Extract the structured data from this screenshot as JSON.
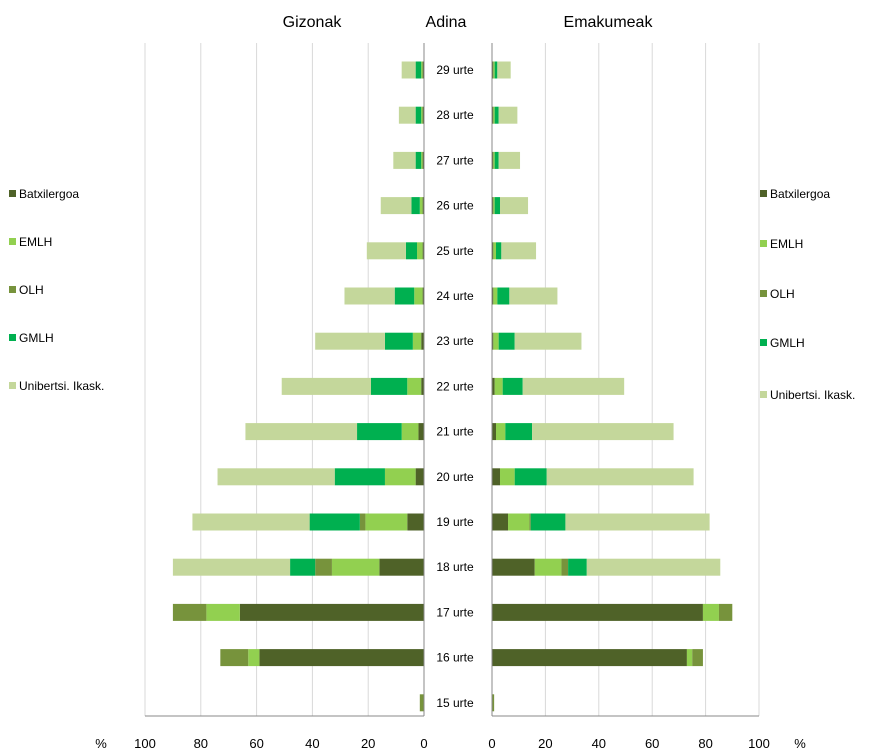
{
  "chart_data": {
    "type": "bar",
    "orientation": "horizontal",
    "stacked": true,
    "layout": "population-pyramid",
    "titles": {
      "left": "Gizonak",
      "center": "Adina",
      "right": "Emakumeak"
    },
    "categories": [
      "29 urte",
      "28 urte",
      "27 urte",
      "26 urte",
      "25 urte",
      "24 urte",
      "23 urte",
      "22 urte",
      "21 urte",
      "20 urte",
      "19 urte",
      "18 urte",
      "17 urte",
      "16 urte",
      "15 urte"
    ],
    "series_colors": {
      "Batxilergoa": "#4f6228",
      "EMLH": "#92d050",
      "OLH": "#77933c",
      "GMLH": "#00b050",
      "Unibertsi. Ikask.": "#c4d79b"
    },
    "axis": {
      "min": 0,
      "max": 100,
      "ticks": [
        100,
        80,
        60,
        40,
        20,
        0
      ],
      "ticks_right": [
        0,
        20,
        40,
        60,
        80,
        100
      ],
      "unit": "%"
    },
    "grid": true,
    "legend_position": "left and right",
    "left": {
      "name": "Gizonak",
      "series": [
        {
          "name": "Batxilergoa",
          "values": [
            0.5,
            0.5,
            0.5,
            0.5,
            0.5,
            0.5,
            1,
            1,
            2,
            3,
            6,
            16,
            66,
            59,
            0
          ]
        },
        {
          "name": "EMLH",
          "values": [
            0.5,
            0.5,
            0.5,
            1,
            2,
            3,
            3,
            5,
            6,
            11,
            15,
            17,
            12,
            4,
            0
          ]
        },
        {
          "name": "OLH",
          "values": [
            0,
            0,
            0,
            0,
            0,
            0,
            0,
            0,
            0,
            0,
            2,
            6,
            12,
            10,
            1.5
          ]
        },
        {
          "name": "GMLH",
          "values": [
            2,
            2,
            2,
            3,
            4,
            7,
            10,
            13,
            16,
            18,
            18,
            9,
            0,
            0,
            0
          ]
        },
        {
          "name": "Unibertsi. Ikask.",
          "values": [
            5,
            6,
            8,
            11,
            14,
            18,
            25,
            32,
            40,
            42,
            42,
            42,
            0,
            0,
            0
          ]
        }
      ]
    },
    "right": {
      "name": "Emakumeak",
      "series": [
        {
          "name": "Batxilergoa",
          "values": [
            0.5,
            0.5,
            0.5,
            0.5,
            0.5,
            0.5,
            0.5,
            1,
            1.5,
            3,
            6,
            16,
            79,
            73,
            0
          ]
        },
        {
          "name": "EMLH",
          "values": [
            0.5,
            0.5,
            0.5,
            0.5,
            1,
            1.5,
            2,
            3,
            3.5,
            5.5,
            8,
            10,
            6,
            2,
            0
          ]
        },
        {
          "name": "OLH",
          "values": [
            0,
            0,
            0,
            0,
            0,
            0,
            0,
            0,
            0,
            0,
            0.5,
            2.5,
            5,
            4,
            0.8
          ]
        },
        {
          "name": "GMLH",
          "values": [
            1,
            1.5,
            1.5,
            2,
            2,
            4.5,
            6,
            7.5,
            10,
            12,
            13,
            7,
            0,
            0,
            0
          ]
        },
        {
          "name": "Unibertsi. Ikask.",
          "values": [
            5,
            7,
            8,
            10.5,
            13,
            18,
            25,
            38,
            53,
            55,
            54,
            50,
            0,
            0,
            0
          ]
        }
      ]
    }
  }
}
